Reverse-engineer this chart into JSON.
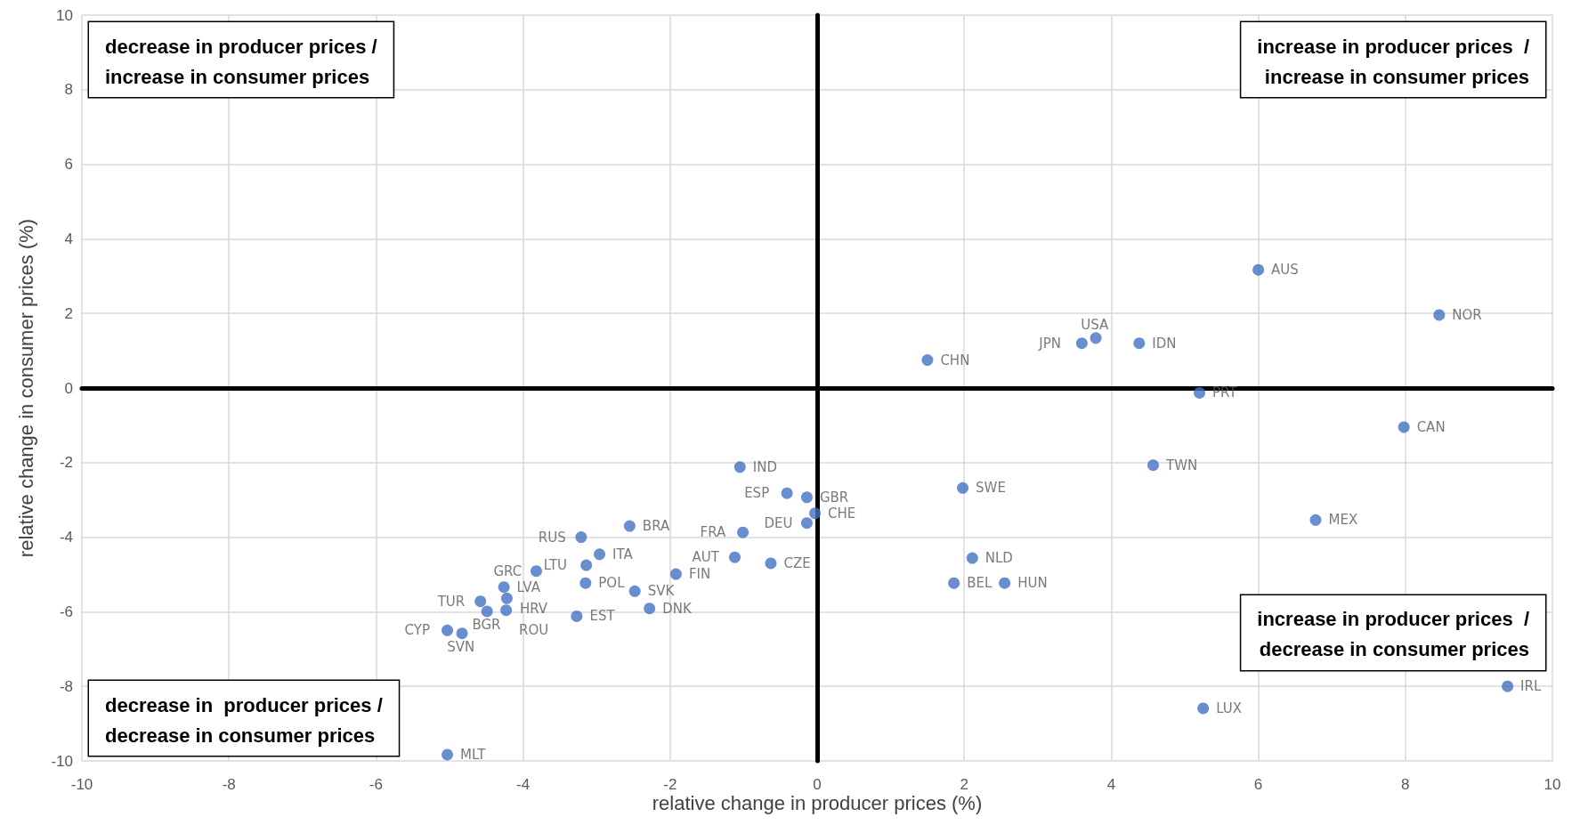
{
  "chart_data": {
    "type": "scatter",
    "xlabel": "relative change in producer prices (%)",
    "ylabel": "relative change in consumer prices (%)",
    "xlim": [
      -10,
      10
    ],
    "xticks": [
      -10,
      -8,
      -6,
      -4,
      -2,
      0,
      2,
      4,
      6,
      8,
      10
    ],
    "ylim": [
      -10,
      10
    ],
    "yticks": [
      -10,
      -8,
      -6,
      -4,
      -2,
      0,
      2,
      4,
      6,
      8,
      10
    ],
    "grid": true,
    "marker": "circle",
    "annotations": [
      "decrease in producer prices /\nincrease in consumer prices",
      "increase in producer prices  /\nincrease in consumer prices",
      "increase in producer prices  /\ndecrease in consumer prices",
      "decrease in  producer prices /\ndecrease in consumer prices"
    ],
    "series": [
      {
        "color": "#4472c4",
        "x": [
          6.0,
          8.46,
          3.79,
          3.6,
          4.38,
          1.5,
          5.2,
          7.98,
          4.57,
          1.98,
          6.78,
          2.11,
          1.86,
          2.55,
          9.39,
          5.25,
          -1.05,
          -0.41,
          -0.14,
          -0.03,
          -0.14,
          -1.01,
          -1.12,
          -0.63,
          -1.92,
          -2.55,
          -3.21,
          -2.96,
          -3.14,
          -3.82,
          -3.15,
          -2.48,
          -2.28,
          -3.27,
          -4.26,
          -4.22,
          -4.58,
          -4.49,
          -4.23,
          -5.03,
          -4.83,
          -5.03
        ],
        "values": [
          3.17,
          1.96,
          1.34,
          1.2,
          1.2,
          0.75,
          -0.13,
          -1.05,
          -2.07,
          -2.68,
          -3.54,
          -4.56,
          -5.23,
          -5.23,
          -8.0,
          -8.59,
          -2.12,
          -2.82,
          -2.93,
          -3.36,
          -3.62,
          -3.87,
          -4.54,
          -4.7,
          -4.99,
          -3.7,
          -4.0,
          -4.46,
          -4.75,
          -4.91,
          -5.23,
          -5.45,
          -5.91,
          -6.12,
          -5.34,
          -5.64,
          -5.72,
          -5.99,
          -5.96,
          -6.5,
          -6.58,
          -9.83
        ],
        "value_labels": [
          "AUS",
          "NOR",
          "USA",
          "JPN",
          "IDN",
          "CHN",
          "PRT",
          "CAN",
          "TWN",
          "SWE",
          "MEX",
          "NLD",
          "BEL",
          "HUN",
          "IRL",
          "LUX",
          "IND",
          "ESP",
          "GBR",
          "CHE",
          "DEU",
          "FRA",
          "AUT",
          "CZE",
          "FIN",
          "BRA",
          "RUS",
          "ITA",
          "LTU",
          "GRC",
          "POL",
          "SVK",
          "DNK",
          "EST",
          "LVA",
          "HRV",
          "TUR",
          "BGR",
          "ROU",
          "CYP",
          "SVN",
          "MLT"
        ]
      }
    ]
  }
}
